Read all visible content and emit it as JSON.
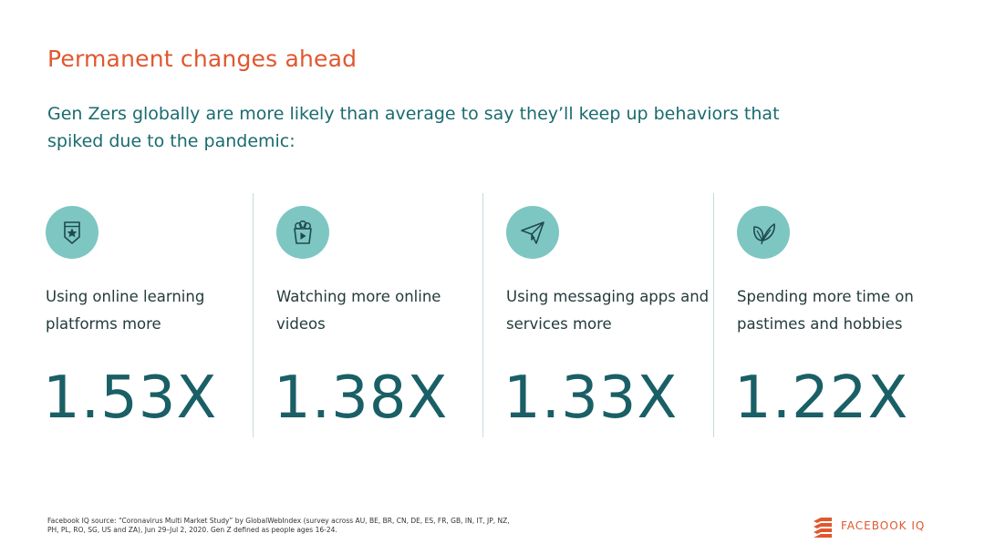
{
  "title": "Permanent changes ahead",
  "subtitle": "Gen Zers globally are more likely than average to say they’ll keep up behaviors that spiked due to the pandemic:",
  "stats": [
    {
      "icon": "badge-star-icon",
      "label": "Using online learning platforms more",
      "value": "1.53X"
    },
    {
      "icon": "popcorn-play-icon",
      "label": "Watching more online videos",
      "value": "1.38X"
    },
    {
      "icon": "paper-plane-icon",
      "label": "Using messaging apps and services more",
      "value": "1.33X"
    },
    {
      "icon": "leaves-icon",
      "label": "Spending more time on pastimes and hobbies",
      "value": "1.22X"
    }
  ],
  "source": "Facebook IQ source: “Coronavirus Multi Market Study” by GlobalWebIndex (survey across AU, BE, BR, CN, DE, ES, FR, GB, IN, IT, JP, NZ, PH, PL, RO, SG, US and ZA), Jun 29–Jul 2, 2020. Gen Z defined as people ages 16-24.",
  "brand": {
    "name": "FACEBOOK IQ",
    "color": "#e0572e"
  },
  "colors": {
    "title": "#e0572e",
    "subtitle": "#1a6b6e",
    "value": "#1a5f66",
    "icon_bg": "#7ec6c2"
  }
}
